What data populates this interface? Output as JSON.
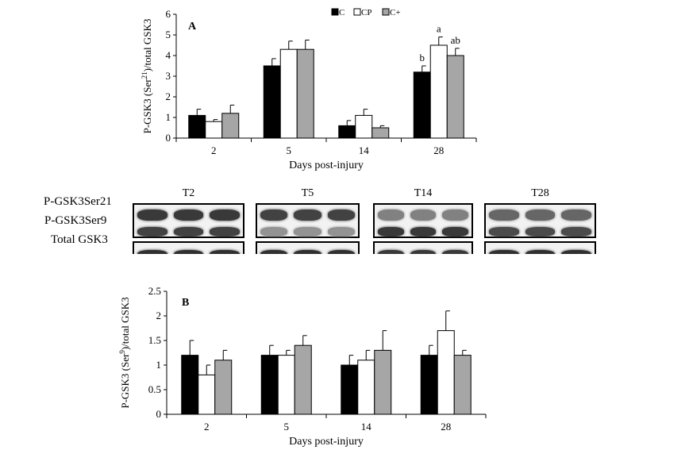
{
  "legend": [
    {
      "label": "C",
      "color": "#000000"
    },
    {
      "label": "CP",
      "color": "#ffffff"
    },
    {
      "label": "C+",
      "color": "#a6a6a6"
    }
  ],
  "chart_data": [
    {
      "type": "bar",
      "panel": "A",
      "categories": [
        "2",
        "5",
        "14",
        "28"
      ],
      "series": [
        {
          "name": "C",
          "values": [
            1.1,
            3.5,
            0.6,
            3.2
          ],
          "errors": [
            0.3,
            0.35,
            0.25,
            0.3
          ]
        },
        {
          "name": "CP",
          "values": [
            0.8,
            4.3,
            1.1,
            4.5
          ],
          "errors": [
            0.1,
            0.4,
            0.3,
            0.4
          ]
        },
        {
          "name": "C+",
          "values": [
            1.2,
            4.3,
            0.5,
            4.0
          ],
          "errors": [
            0.4,
            0.45,
            0.1,
            0.35
          ]
        }
      ],
      "annotations": [
        {
          "category": "28",
          "series": "C",
          "text": "b"
        },
        {
          "category": "28",
          "series": "CP",
          "text": "a"
        },
        {
          "category": "28",
          "series": "C+",
          "text": "ab"
        }
      ],
      "ylabel_main": "P-GSK3 (Ser",
      "ylabel_sup": "21",
      "ylabel_end": ")/total GSK3",
      "xlabel": "Days post-injury",
      "ylim": [
        0,
        6
      ],
      "yticks": [
        "0",
        "1",
        "2",
        "3",
        "4",
        "5",
        "6"
      ]
    },
    {
      "type": "bar",
      "panel": "B",
      "categories": [
        "2",
        "5",
        "14",
        "28"
      ],
      "series": [
        {
          "name": "C",
          "values": [
            1.2,
            1.2,
            1.0,
            1.2
          ],
          "errors": [
            0.3,
            0.2,
            0.2,
            0.2
          ]
        },
        {
          "name": "CP",
          "values": [
            0.8,
            1.2,
            1.1,
            1.7
          ],
          "errors": [
            0.2,
            0.1,
            0.2,
            0.4
          ]
        },
        {
          "name": "C+",
          "values": [
            1.1,
            1.4,
            1.3,
            1.2
          ],
          "errors": [
            0.2,
            0.2,
            0.4,
            0.1
          ]
        }
      ],
      "ylabel_main": "P-GSK3 (Ser",
      "ylabel_sup": "9",
      "ylabel_end": ")/total GSK3",
      "xlabel": "Days post-injury",
      "ylim": [
        0,
        2.5
      ],
      "yticks": [
        "0",
        "0.5",
        "1",
        "1.5",
        "2",
        "2.5"
      ]
    }
  ],
  "blot": {
    "row_labels": [
      "P-GSK3Ser21",
      "P-GSK3Ser9",
      "Total GSK3"
    ],
    "panels": [
      {
        "title": "T2",
        "intensity": [
          0.85,
          0.8,
          0.9
        ]
      },
      {
        "title": "T5",
        "intensity": [
          0.8,
          0.35,
          0.9
        ]
      },
      {
        "title": "T14",
        "intensity": [
          0.45,
          0.85,
          0.85
        ]
      },
      {
        "title": "T28",
        "intensity": [
          0.6,
          0.75,
          0.9
        ]
      }
    ]
  }
}
